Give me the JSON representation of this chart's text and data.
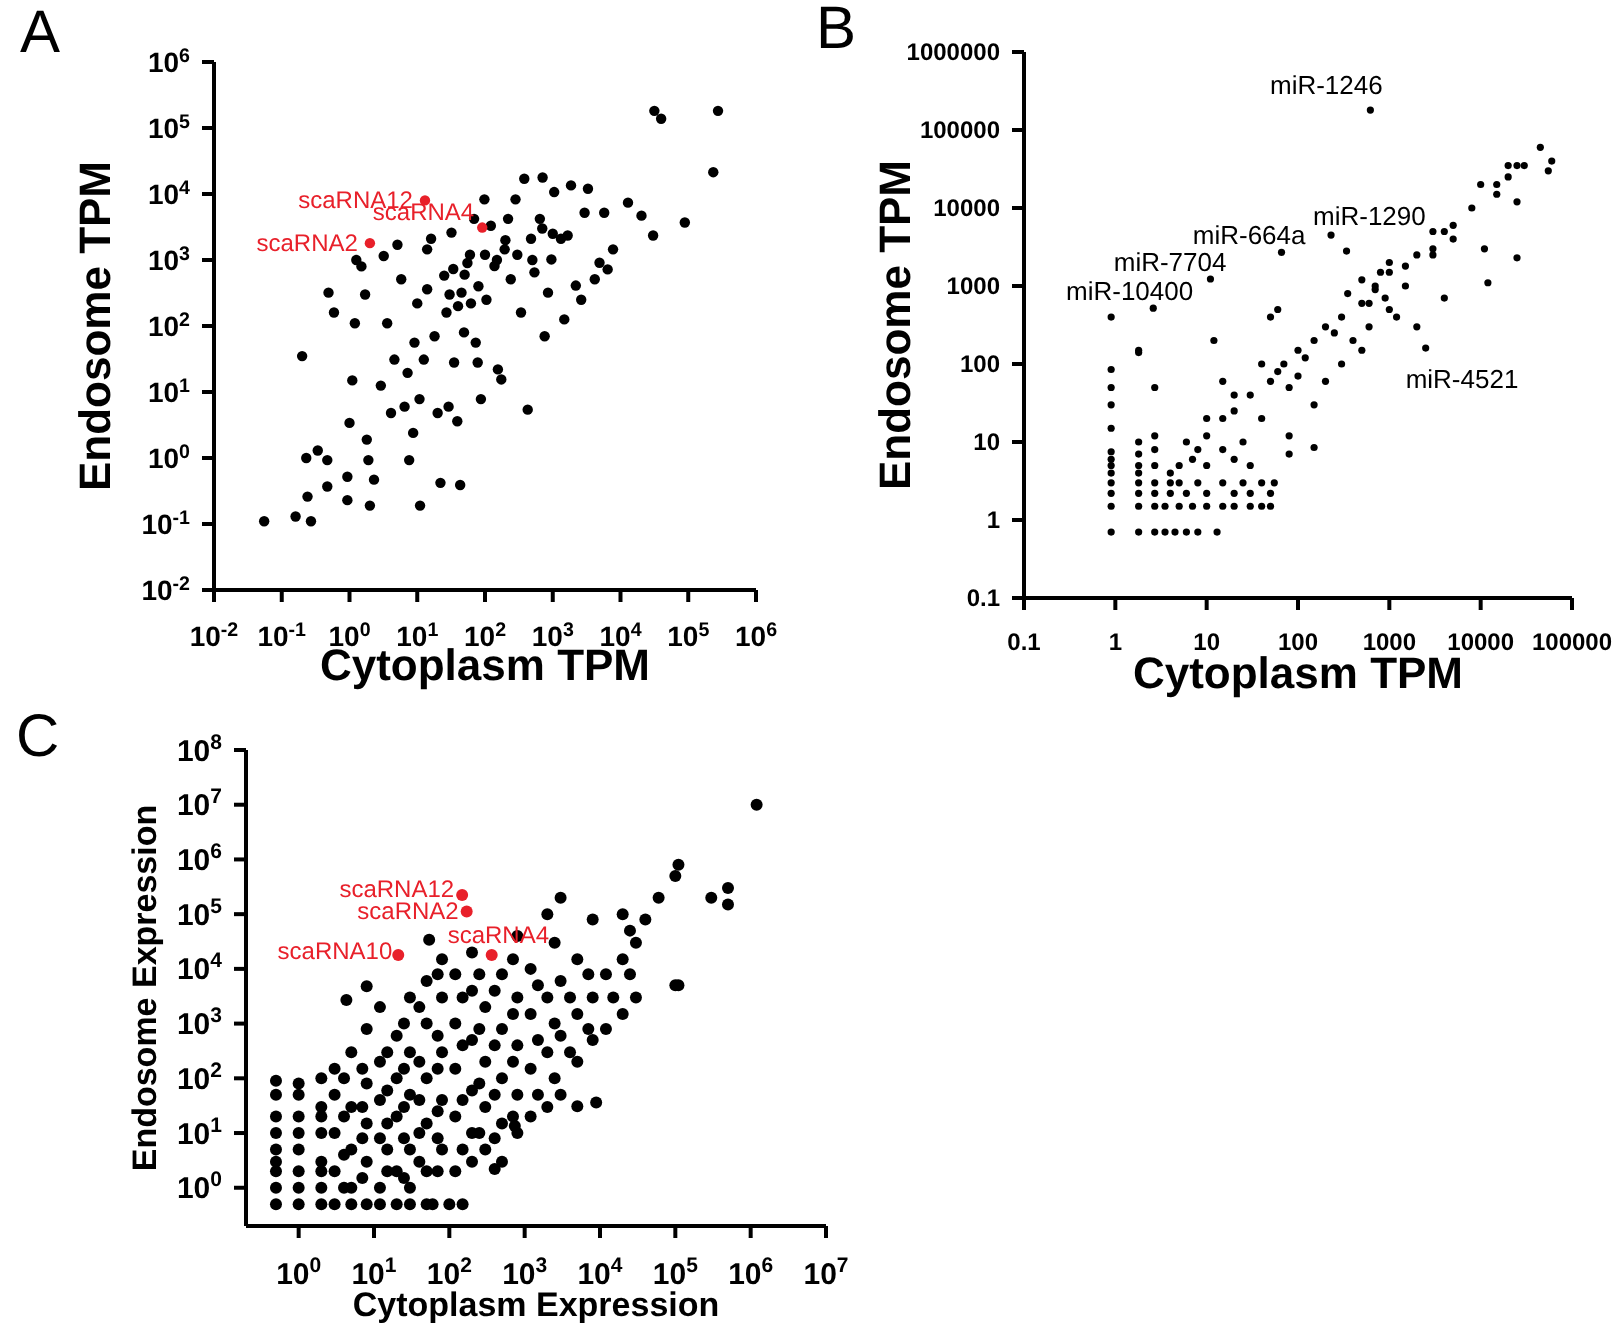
{
  "chart_data": [
    {
      "type": "scatter",
      "title": "A",
      "xlabel": "Cytoplasm TPM",
      "ylabel": "Endosome TPM",
      "log": "xy",
      "marker": "circle",
      "xlim": [
        0.01,
        1000000
      ],
      "ylim": [
        0.01,
        1000000
      ],
      "xticks": [
        {
          "value": 0.01,
          "label": "10$^{-2}$"
        },
        {
          "value": 0.1,
          "label": "10$^{-1}$"
        },
        {
          "value": 1,
          "label": "10$^{0}$"
        },
        {
          "value": 10,
          "label": "10$^{1}$"
        },
        {
          "value": 100,
          "label": "10$^{2}$"
        },
        {
          "value": 1000,
          "label": "10$^{3}$"
        },
        {
          "value": 10000,
          "label": "10$^{4}$"
        },
        {
          "value": 100000,
          "label": "10$^{5}$"
        },
        {
          "value": 1000000,
          "label": "10$^{6}$"
        }
      ],
      "yticks": [
        {
          "value": 0.01,
          "label": "10$^{-2}$"
        },
        {
          "value": 0.1,
          "label": "10$^{-1}$"
        },
        {
          "value": 1,
          "label": "10$^{0}$"
        },
        {
          "value": 10,
          "label": "10$^{1}$"
        },
        {
          "value": 100,
          "label": "10$^{2}$"
        },
        {
          "value": 1000,
          "label": "10$^{3}$"
        },
        {
          "value": 10000,
          "label": "10$^{4}$"
        },
        {
          "value": 100000,
          "label": "10$^{5}$"
        },
        {
          "value": 1000000,
          "label": "10$^{6}$"
        }
      ],
      "series": [
        {
          "color": "#000000",
          "x": [
            0.055,
            0.16,
            0.27,
            0.23,
            0.2,
            0.34,
            0.47,
            0.49,
            0.59,
            0.47,
            0.93,
            0.93,
            1,
            1.1,
            1.2,
            1.26,
            1.5,
            1.7,
            1.8,
            1.9,
            2,
            2.9,
            3.2,
            3.6,
            4.1,
            4.6,
            5.1,
            5.8,
            6.5,
            7.2,
            7.6,
            8.7,
            10,
            10.8,
            11,
            12.5,
            14,
            14,
            16,
            18,
            20,
            22,
            25,
            27,
            29,
            32,
            34,
            35,
            39,
            43,
            45,
            49,
            55,
            62,
            69,
            73,
            78,
            87,
            98,
            105,
            122,
            138,
            155,
            174,
            195,
            219,
            240,
            282,
            340,
            380,
            427,
            478,
            537,
            645,
            708,
            759,
            851,
            955,
            1050,
            1320,
            1480,
            1660,
            1860,
            2190,
            2630,
            2950,
            3310,
            4170,
            4900,
            5750,
            6460,
            7760,
            12900,
            20400,
            30300,
            31600,
            39800,
            89000,
            234000,
            275000,
            9.1,
            2.3,
            0.24,
            30,
            40,
            50,
            60,
            80,
            100,
            150,
            200,
            300,
            500,
            700,
            1000
          ],
          "values": [
            0.11,
            0.13,
            0.11,
            1,
            35,
            1.3,
            0.93,
            320,
            160,
            0.37,
            0.52,
            0.23,
            3.4,
            15,
            110,
            1000,
            800,
            300,
            1.9,
            0.93,
            0.19,
            12.5,
            1150,
            110,
            4.8,
            31,
            1700,
            510,
            6,
            19.5,
            0.93,
            2.4,
            220,
            7.8,
            0.19,
            31,
            360,
            1450,
            2100,
            70,
            4.8,
            0.42,
            580,
            160,
            6,
            2600,
            730,
            28,
            3.6,
            0.39,
            320,
            80,
            900,
            220,
            4200,
            56,
            28,
            7.8,
            8300,
            250,
            3300,
            810,
            22,
            15.5,
            1450,
            4200,
            510,
            8300,
            160,
            17000,
            5.4,
            2100,
            650,
            4200,
            17800,
            70,
            320,
            1020,
            10700,
            2100,
            126,
            2350,
            13500,
            410,
            250,
            5200,
            12000,
            510,
            910,
            5200,
            720,
            1450,
            7400,
            4700,
            2350,
            182000,
            138000,
            3700,
            21400,
            182000,
            56,
            0.47,
            0.26,
            300,
            200,
            600,
            1200,
            400,
            1200,
            1000,
            2000,
            1200,
            1000,
            3000,
            2500
          ]
        },
        {
          "color": "#e8202a",
          "x": [
            2,
            13,
            91
          ],
          "values": [
            1800,
            8000,
            3100
          ]
        }
      ],
      "annotations": [
        {
          "text": "scaRNA12",
          "x": 13,
          "y": 8000
        },
        {
          "text": "scaRNA4",
          "x": 91,
          "y": 3100
        },
        {
          "text": "scaRNA2",
          "x": 2,
          "y": 1800
        }
      ]
    },
    {
      "type": "scatter",
      "title": "B",
      "xlabel": "Cytoplasm TPM",
      "ylabel": "Endosome TPM",
      "log": "xy",
      "marker": "circle",
      "xlim": [
        0.1,
        100000
      ],
      "ylim": [
        0.1,
        1000000
      ],
      "xticks": [
        0.1,
        1,
        10,
        100,
        1000,
        10000,
        100000
      ],
      "yticks": [
        0.1,
        1,
        10,
        100,
        1000,
        10000,
        100000,
        1000000
      ],
      "series": [
        {
          "color": "#000000",
          "x": [
            0.9,
            0.9,
            0.9,
            0.9,
            0.9,
            0.9,
            0.9,
            0.9,
            0.9,
            0.9,
            0.9,
            0.9,
            0.9,
            1.8,
            1.8,
            1.8,
            1.8,
            1.8,
            1.8,
            1.8,
            1.8,
            1.8,
            1.8,
            2.7,
            2.7,
            2.7,
            2.7,
            2.7,
            2.7,
            2.7,
            2.7,
            2.6,
            3.5,
            4.5,
            6,
            8,
            13,
            3.5,
            5,
            7,
            10,
            15,
            20,
            30,
            40,
            50,
            4,
            6,
            10,
            20,
            30,
            50,
            4,
            8,
            15,
            25,
            40,
            55,
            5,
            8,
            10,
            15,
            20,
            30,
            50,
            70,
            100,
            150,
            200,
            300,
            500,
            700,
            1000,
            1500,
            2000,
            3000,
            4000,
            5000,
            8000,
            10000,
            15000,
            20000,
            25000,
            45000,
            60000,
            55000,
            10,
            15,
            20,
            30,
            20,
            15,
            12,
            50,
            60,
            40,
            80,
            100,
            150,
            150,
            80,
            80,
            200,
            300,
            400,
            500,
            600,
            700,
            1000,
            1200,
            800,
            1500,
            1000,
            3000,
            4000,
            12000,
            25000,
            11000,
            15000,
            25000,
            3000,
            2000,
            5000,
            20000,
            30000,
            10,
            6,
            5,
            7,
            4,
            25,
            40,
            60,
            120,
            250,
            350,
            500,
            600,
            900,
            620,
            230,
            340,
            66,
            11,
            2500
          ],
          "values": [
            0.7,
            1.5,
            2.2,
            3,
            4,
            5,
            6,
            7.5,
            15,
            30,
            50,
            85,
            400,
            0.7,
            1.5,
            2.2,
            3,
            4,
            5,
            7,
            10,
            140,
            150,
            0.7,
            1.5,
            2.2,
            3,
            5,
            8,
            12,
            50,
            520,
            0.7,
            0.7,
            0.7,
            0.7,
            0.7,
            1.5,
            1.5,
            1.5,
            1.5,
            1.5,
            1.5,
            1.5,
            1.5,
            1.5,
            2.2,
            2.2,
            2.2,
            2.2,
            2.2,
            2.2,
            3,
            3,
            3,
            3,
            3,
            3,
            5,
            8,
            12,
            20,
            25,
            40,
            60,
            100,
            150,
            200,
            300,
            400,
            600,
            1000,
            1500,
            1800,
            2500,
            3000,
            5000,
            6000,
            10000,
            20000,
            20000,
            35000,
            35000,
            60000,
            40000,
            30000,
            5,
            8,
            6,
            5,
            40,
            60,
            200,
            400,
            500,
            100,
            50,
            70,
            30,
            8.5,
            12,
            7,
            60,
            100,
            200,
            150,
            300,
            900,
            500,
            400,
            1500,
            1000,
            2000,
            5000,
            700,
            1100,
            2300,
            3000,
            15000,
            12000,
            2500,
            300,
            4000,
            25000,
            35000,
            20,
            10,
            3,
            6,
            4,
            10,
            20,
            80,
            120,
            250,
            800,
            1200,
            600,
            700,
            180000,
            4500,
            2800,
            2700,
            1230,
            160
          ]
        }
      ],
      "annotations": [
        {
          "text": "miR-1246",
          "x": 620,
          "y": 180000
        },
        {
          "text": "miR-1290",
          "x": 230,
          "y": 4500
        },
        {
          "text": "miR-664a",
          "x": 66,
          "y": 2700
        },
        {
          "text": "miR-7704",
          "x": 11,
          "y": 1230
        },
        {
          "text": "miR-10400",
          "x": 2.6,
          "y": 520
        },
        {
          "text": "miR-4521",
          "x": 2500,
          "y": 160
        }
      ]
    },
    {
      "type": "scatter",
      "title": "C",
      "xlabel": "Cytoplasm Expression",
      "ylabel": "Endosome Expression",
      "log": "xy",
      "marker": "circle",
      "xlim": [
        0.2,
        10000000
      ],
      "ylim": [
        0.2,
        100000000
      ],
      "xticks": [
        {
          "value": 1,
          "label": "10$^{0}$"
        },
        {
          "value": 10,
          "label": "10$^{1}$"
        },
        {
          "value": 100,
          "label": "10$^{2}$"
        },
        {
          "value": 1000,
          "label": "10$^{3}$"
        },
        {
          "value": 10000,
          "label": "10$^{4}$"
        },
        {
          "value": 100000,
          "label": "10$^{5}$"
        },
        {
          "value": 1000000,
          "label": "10$^{6}$"
        },
        {
          "value": 10000000,
          "label": "10$^{7}$"
        }
      ],
      "yticks": [
        {
          "value": 1,
          "label": "10$^{0}$"
        },
        {
          "value": 10,
          "label": "10$^{1}$"
        },
        {
          "value": 100,
          "label": "10$^{2}$"
        },
        {
          "value": 1000,
          "label": "10$^{3}$"
        },
        {
          "value": 10000,
          "label": "10$^{4}$"
        },
        {
          "value": 100000,
          "label": "10$^{5}$"
        },
        {
          "value": 1000000,
          "label": "10$^{6}$"
        },
        {
          "value": 10000000,
          "label": "10$^{7}$"
        },
        {
          "value": 100000000,
          "label": "10$^{8}$"
        }
      ],
      "series": [
        {
          "color": "#000000",
          "x": [
            0.5,
            0.5,
            0.5,
            0.5,
            0.5,
            0.5,
            0.5,
            0.5,
            0.5,
            1,
            1,
            1,
            1,
            1,
            1,
            1,
            1,
            2,
            2,
            2,
            2,
            2,
            2,
            3,
            5,
            8,
            12,
            20,
            30,
            50,
            60,
            100,
            150,
            3,
            3,
            3,
            3,
            5,
            5,
            5,
            5,
            8,
            8,
            8,
            8,
            12,
            12,
            12,
            12,
            12,
            20,
            20,
            20,
            20,
            30,
            30,
            30,
            30,
            30,
            50,
            50,
            50,
            50,
            50,
            80,
            80,
            80,
            80,
            80,
            120,
            120,
            120,
            120,
            120,
            200,
            200,
            200,
            200,
            200,
            200,
            300,
            300,
            300,
            300,
            500,
            500,
            500,
            500,
            500,
            800,
            800,
            800,
            800,
            800,
            1200,
            1200,
            1200,
            1200,
            2000,
            2000,
            2000,
            2000,
            3000,
            3000,
            3000,
            3000,
            5000,
            5000,
            5000,
            5000,
            8900,
            8000,
            8000,
            8000,
            12000,
            12000,
            20000,
            20000,
            20000,
            30000,
            30000,
            40000,
            60000,
            100000,
            110000,
            100000,
            110000,
            300000,
            500000,
            500000,
            1200000,
            4.3,
            8,
            54,
            740,
            400,
            2,
            2,
            4,
            4,
            4,
            4,
            7,
            7,
            7,
            7,
            15,
            15,
            15,
            15,
            15,
            25,
            25,
            25,
            25,
            25,
            40,
            40,
            40,
            40,
            40,
            70,
            70,
            70,
            70,
            70,
            70,
            150,
            150,
            150,
            150,
            250,
            250,
            250,
            250,
            400,
            400,
            400,
            400,
            700,
            700,
            700,
            700,
            1500,
            1500,
            1500,
            2500,
            2500,
            2500,
            4000,
            4000,
            7000,
            7000,
            15000,
            25000,
            25000
          ],
          "values": [
            0.5,
            1,
            2,
            3,
            5,
            10,
            20,
            50,
            90,
            0.5,
            1,
            2,
            5,
            10,
            20,
            50,
            80,
            0.5,
            1,
            3,
            10,
            30,
            100,
            0.5,
            0.5,
            0.5,
            0.5,
            0.5,
            0.5,
            0.5,
            0.5,
            0.5,
            0.5,
            2,
            10,
            50,
            150,
            1,
            5,
            30,
            300,
            3,
            15,
            80,
            800,
            1,
            8,
            40,
            200,
            2000,
            2,
            20,
            100,
            600,
            1,
            5,
            50,
            300,
            3000,
            2,
            15,
            100,
            1000,
            6000,
            5,
            40,
            300,
            3000,
            15000,
            2,
            20,
            150,
            1000,
            8000,
            3,
            10,
            60,
            500,
            4000,
            20000,
            5,
            30,
            200,
            2000,
            3,
            15,
            100,
            800,
            8000,
            10,
            50,
            400,
            3000,
            40000,
            20,
            150,
            1500,
            10000,
            30,
            300,
            3000,
            100000,
            50,
            600,
            6000,
            200000,
            31,
            200,
            1500,
            15000,
            36,
            500,
            3000,
            80000,
            800,
            8000,
            1500,
            15000,
            100000,
            3000,
            30000,
            80000,
            200000,
            5000,
            5000,
            500000,
            800000,
            200000,
            300000,
            150000,
            10000000,
            2700,
            4800,
            34000,
            13.5,
            2.2,
            2,
            20,
            1,
            4,
            20,
            100,
            1.5,
            8,
            30,
            150,
            2,
            5,
            15,
            60,
            300,
            1.5,
            8,
            30,
            150,
            1000,
            3,
            10,
            40,
            200,
            2000,
            2,
            8,
            25,
            150,
            600,
            8000,
            5,
            40,
            400,
            3000,
            10,
            80,
            800,
            8000,
            8,
            50,
            400,
            4000,
            20,
            200,
            1500,
            15000,
            50,
            500,
            5000,
            100,
            1000,
            30000,
            300,
            3000,
            800,
            8000,
            3000,
            8000,
            50000
          ]
        },
        {
          "color": "#e8202a",
          "x": [
            148,
            170,
            365,
            21
          ],
          "values": [
            224000,
            112000,
            18000,
            18000
          ]
        }
      ],
      "annotations": [
        {
          "text": "scaRNA12",
          "x": 148,
          "y": 224000
        },
        {
          "text": "scaRNA2",
          "x": 170,
          "y": 112000
        },
        {
          "text": "scaRNA4",
          "x": 365,
          "y": 18000
        },
        {
          "text": "scaRNA10",
          "x": 21,
          "y": 18000
        }
      ]
    }
  ]
}
